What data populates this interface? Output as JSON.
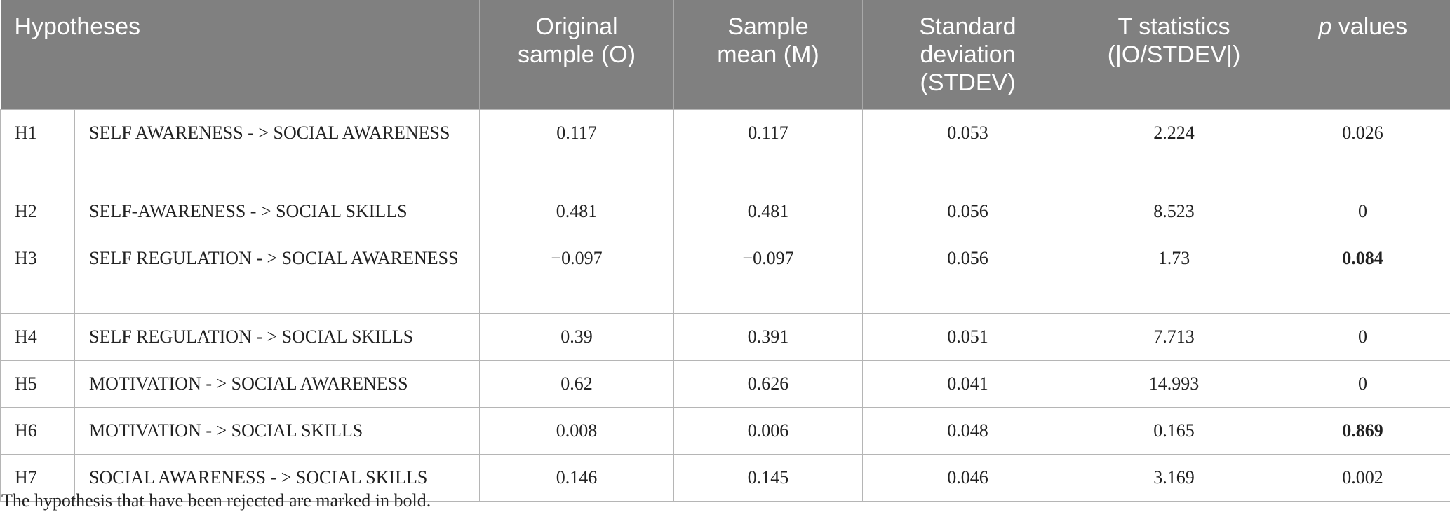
{
  "table": {
    "headers": {
      "hypotheses": "Hypotheses",
      "original_sample_line1": "Original",
      "original_sample_line2": "sample (O)",
      "sample_mean_line1": "Sample",
      "sample_mean_line2": "mean (M)",
      "std_line1": "Standard",
      "std_line2": "deviation",
      "std_line3": "(STDEV)",
      "t_line1": "T statistics",
      "t_line2": "(|O/STDEV|)",
      "p_italic": "p",
      "p_rest": " values"
    },
    "rows": [
      {
        "id": "H1",
        "path": "SELF AWARENESS - > SOCIAL AWARENESS",
        "original": "0.117",
        "mean": "0.117",
        "stdev": "0.053",
        "t": "2.224",
        "p": "0.026"
      },
      {
        "id": "H2",
        "path": "SELF-AWARENESS - > SOCIAL SKILLS",
        "original": "0.481",
        "mean": "0.481",
        "stdev": "0.056",
        "t": "8.523",
        "p": "0"
      },
      {
        "id": "H3",
        "path": "SELF REGULATION - > SOCIAL AWARENESS",
        "original": "−0.097",
        "mean": "−0.097",
        "stdev": "0.056",
        "t": "1.73",
        "p": "0.084"
      },
      {
        "id": "H4",
        "path": "SELF REGULATION - > SOCIAL SKILLS",
        "original": "0.39",
        "mean": "0.391",
        "stdev": "0.051",
        "t": "7.713",
        "p": "0"
      },
      {
        "id": "H5",
        "path": "MOTIVATION - > SOCIAL AWARENESS",
        "original": "0.62",
        "mean": "0.626",
        "stdev": "0.041",
        "t": "14.993",
        "p": "0"
      },
      {
        "id": "H6",
        "path": "MOTIVATION - > SOCIAL SKILLS",
        "original": "0.008",
        "mean": "0.006",
        "stdev": "0.048",
        "t": "0.165",
        "p": "0.869"
      },
      {
        "id": "H7",
        "path": "SOCIAL AWARENESS - > SOCIAL SKILLS",
        "original": "0.146",
        "mean": "0.145",
        "stdev": "0.046",
        "t": "3.169",
        "p": "0.002"
      }
    ]
  },
  "footnote": "The hypothesis that have been rejected are marked in bold."
}
